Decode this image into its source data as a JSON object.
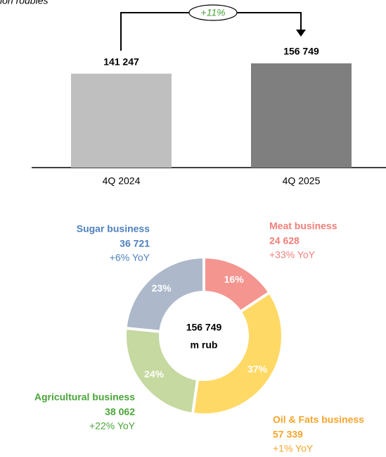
{
  "chart_data": [
    {
      "type": "bar",
      "title": "ion roubles",
      "categories": [
        "4Q 2024",
        "4Q 2025"
      ],
      "values": [
        141247,
        156749
      ],
      "value_labels": [
        "141 247",
        "156 749"
      ],
      "colors": [
        "#bfbfbf",
        "#7f7f7f"
      ],
      "annotation": "+11%"
    },
    {
      "type": "donut",
      "categories": [
        "Meat business",
        "Oil & Fats business",
        "Agricultural business",
        "Sugar business"
      ],
      "values": [
        24628,
        57339,
        38062,
        36721
      ],
      "value_labels": [
        "24 628",
        "57 339",
        "38 062",
        "36 721"
      ],
      "shares": [
        16,
        37,
        24,
        23
      ],
      "share_labels": [
        "16%",
        "37%",
        "24%",
        "23%"
      ],
      "changes": [
        "+33% YoY",
        "+1% YoY",
        "+22% YoY",
        "+6% YoY"
      ],
      "colors": [
        "#f4958f",
        "#ffd966",
        "#c5d9a0",
        "#adb9ca"
      ],
      "label_colors": [
        "#f07f79",
        "#f5a52b",
        "#4aa43a",
        "#4f81bd"
      ],
      "center_label": [
        "156 749",
        "m rub"
      ]
    }
  ]
}
